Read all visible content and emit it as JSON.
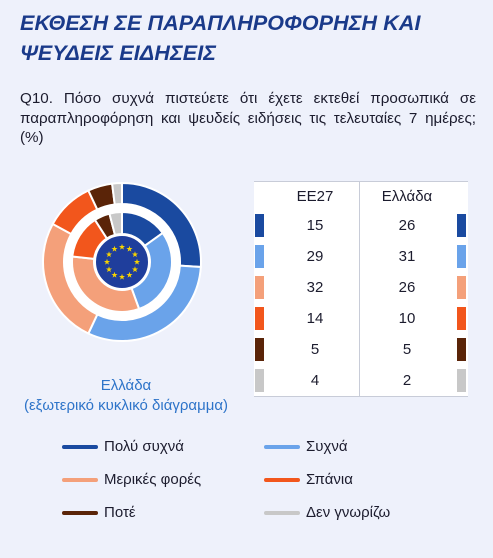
{
  "title_lines": [
    "ΕΚΘΕΣΗ ΣΕ ΠΑΡΑΠΛΗΡΟΦΟΡΗΣΗ ΚΑΙ",
    "ΨΕΥΔΕΙΣ ΕΙΔΗΣΕΙΣ"
  ],
  "question": "Q10. Πόσο συχνά πιστεύετε ότι έχετε εκτεθεί προσωπικά σε παραπληροφόρηση και ψευδείς ειδήσεις τις τελευταίες 7 ημέρες; (%)",
  "donut_caption_lines": [
    "Ελλάδα",
    "(εξωτερικό κυκλικό διάγραμμα)"
  ],
  "colors": {
    "very_often": "#1a4aa0",
    "often": "#6aa3ea",
    "sometimes": "#f4a07a",
    "rarely": "#f2561c",
    "never": "#5a2408",
    "dont_know": "#c8c8c8",
    "eu_flag": "#1f3e9c",
    "eu_stars": "#f7d300"
  },
  "chart_data": {
    "type": "donut",
    "categories": [
      "Πολύ συχνά",
      "Συχνά",
      "Μερικές φορές",
      "Σπάνια",
      "Ποτέ",
      "Δεν γνωρίζω"
    ],
    "series": [
      {
        "name": "ΕΕ27",
        "values": [
          15,
          29,
          32,
          14,
          5,
          4
        ],
        "ring": "inner"
      },
      {
        "name": "Ελλάδα",
        "values": [
          26,
          31,
          26,
          10,
          5,
          2
        ],
        "ring": "outer"
      }
    ]
  },
  "table": {
    "headers": [
      "ΕΕ27",
      "Ελλάδα"
    ]
  }
}
